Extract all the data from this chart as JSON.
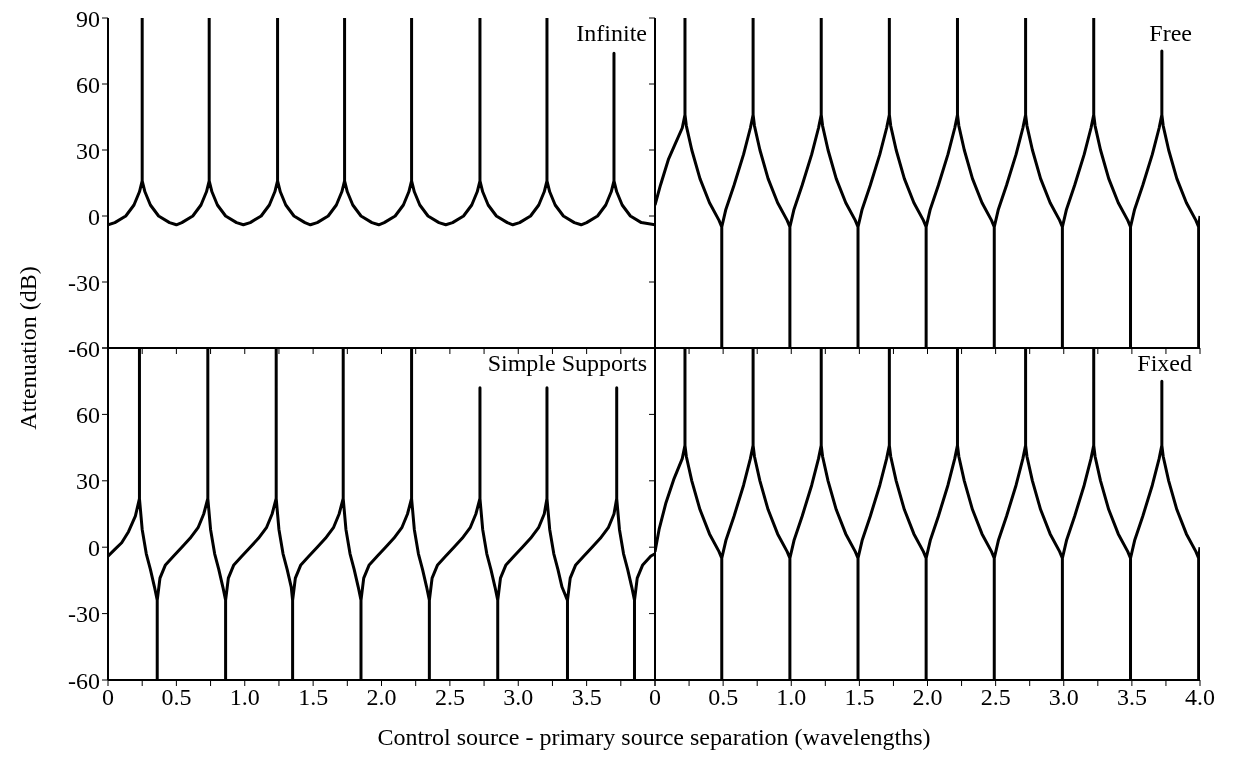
{
  "chart_data": [
    {
      "type": "line",
      "title": "Infinite",
      "ylabel": "Attenuation (dB)",
      "color": "#000000",
      "line_style": "solid",
      "tick_labels": "y",
      "xlim": [
        0,
        4
      ],
      "ylim": [
        -60,
        90
      ],
      "xticks": [
        0,
        0.25,
        0.5,
        0.75,
        1,
        1.25,
        1.5,
        1.75,
        2,
        2.25,
        2.5,
        2.75,
        3,
        3.25,
        3.5,
        3.75,
        4
      ],
      "yticks": [
        90,
        60,
        30,
        0,
        -30,
        -60
      ],
      "x": [
        0,
        0.05,
        0.13,
        0.19,
        0.23,
        0.25,
        0.25,
        0.25,
        0.27,
        0.31,
        0.37,
        0.45,
        0.5,
        0.54,
        0.62,
        0.68,
        0.72,
        0.74,
        0.74,
        0.74,
        0.76,
        0.8,
        0.86,
        0.94,
        0.99,
        1.04,
        1.12,
        1.18,
        1.22,
        1.24,
        1.24,
        1.24,
        1.26,
        1.3,
        1.36,
        1.44,
        1.48,
        1.53,
        1.61,
        1.67,
        1.71,
        1.73,
        1.73,
        1.73,
        1.75,
        1.79,
        1.85,
        1.93,
        1.98,
        2.02,
        2.1,
        2.16,
        2.2,
        2.22,
        2.22,
        2.22,
        2.24,
        2.28,
        2.34,
        2.42,
        2.47,
        2.52,
        2.6,
        2.66,
        2.7,
        2.72,
        2.72,
        2.72,
        2.74,
        2.78,
        2.84,
        2.92,
        2.96,
        3.01,
        3.09,
        3.15,
        3.19,
        3.21,
        3.21,
        3.21,
        3.23,
        3.27,
        3.33,
        3.41,
        3.46,
        3.5,
        3.58,
        3.64,
        3.68,
        3.7,
        3.7,
        3.7,
        3.72,
        3.76,
        3.82,
        3.9,
        4
      ],
      "values": [
        -4,
        -3,
        0,
        5,
        11,
        16,
        90,
        16,
        11,
        5,
        0,
        -3,
        -4,
        -3,
        0,
        5,
        11,
        16,
        90,
        16,
        11,
        5,
        0,
        -3,
        -4,
        -3,
        0,
        5,
        11,
        16,
        90,
        16,
        11,
        5,
        0,
        -3,
        -4,
        -3,
        0,
        5,
        11,
        16,
        90,
        16,
        11,
        5,
        0,
        -3,
        -4,
        -3,
        0,
        5,
        11,
        16,
        90,
        16,
        11,
        5,
        0,
        -3,
        -4,
        -3,
        0,
        5,
        11,
        16,
        90,
        16,
        11,
        5,
        0,
        -3,
        -4,
        -3,
        0,
        5,
        11,
        16,
        90,
        16,
        11,
        5,
        0,
        -3,
        -4,
        -3,
        0,
        5,
        11,
        16,
        74,
        16,
        11,
        5,
        0,
        -3,
        -4
      ]
    },
    {
      "type": "line",
      "title": "Free",
      "color": "#000000",
      "line_style": "solid",
      "tick_labels": false,
      "xlim": [
        0,
        4
      ],
      "ylim": [
        -60,
        90
      ],
      "xticks": [
        0,
        0.25,
        0.5,
        0.75,
        1,
        1.25,
        1.5,
        1.75,
        2,
        2.25,
        2.5,
        2.75,
        3,
        3.25,
        3.5,
        3.75,
        4
      ],
      "yticks": [
        90,
        60,
        30,
        0,
        -30,
        -60
      ],
      "x": [
        0,
        0.04,
        0.1,
        0.15,
        0.2,
        0.22,
        0.22,
        0.22,
        0.23,
        0.27,
        0.33,
        0.4,
        0.47,
        0.49,
        0.49,
        0.49,
        0.52,
        0.58,
        0.65,
        0.7,
        0.72,
        0.72,
        0.72,
        0.73,
        0.77,
        0.83,
        0.9,
        0.97,
        0.99,
        0.99,
        0.99,
        1.02,
        1.08,
        1.15,
        1.2,
        1.22,
        1.22,
        1.22,
        1.23,
        1.27,
        1.33,
        1.4,
        1.47,
        1.49,
        1.49,
        1.49,
        1.52,
        1.58,
        1.65,
        1.7,
        1.72,
        1.72,
        1.72,
        1.73,
        1.77,
        1.83,
        1.9,
        1.97,
        1.99,
        1.99,
        1.99,
        2.02,
        2.08,
        2.15,
        2.2,
        2.22,
        2.22,
        2.22,
        2.23,
        2.27,
        2.33,
        2.4,
        2.47,
        2.49,
        2.49,
        2.49,
        2.52,
        2.58,
        2.65,
        2.7,
        2.72,
        2.72,
        2.72,
        2.73,
        2.77,
        2.83,
        2.9,
        2.97,
        2.99,
        2.99,
        2.99,
        3.02,
        3.08,
        3.15,
        3.2,
        3.22,
        3.22,
        3.22,
        3.23,
        3.27,
        3.33,
        3.4,
        3.47,
        3.49,
        3.49,
        3.49,
        3.52,
        3.58,
        3.65,
        3.7,
        3.72,
        3.72,
        3.72,
        3.73,
        3.77,
        3.83,
        3.9,
        3.97,
        3.99,
        3.99,
        3.99,
        4
      ],
      "values": [
        5,
        14,
        26,
        33,
        40,
        46,
        90,
        46,
        41,
        30,
        17,
        6,
        -2,
        -5,
        -60,
        -5,
        3,
        14,
        28,
        40,
        46,
        90,
        46,
        41,
        30,
        17,
        6,
        -2,
        -5,
        -60,
        -5,
        3,
        14,
        28,
        40,
        46,
        90,
        46,
        41,
        30,
        17,
        6,
        -2,
        -5,
        -60,
        -5,
        3,
        14,
        28,
        40,
        46,
        90,
        46,
        41,
        30,
        17,
        6,
        -2,
        -5,
        -60,
        -5,
        3,
        14,
        28,
        40,
        46,
        90,
        46,
        41,
        30,
        17,
        6,
        -2,
        -5,
        -60,
        -5,
        3,
        14,
        28,
        40,
        46,
        90,
        46,
        41,
        30,
        17,
        6,
        -2,
        -5,
        -60,
        -5,
        3,
        14,
        28,
        40,
        46,
        90,
        46,
        41,
        30,
        17,
        6,
        -2,
        -5,
        -60,
        -5,
        3,
        14,
        28,
        40,
        46,
        75,
        46,
        41,
        30,
        17,
        6,
        -2,
        -5,
        -60,
        -5,
        0
      ]
    },
    {
      "type": "line",
      "title": "Simple Supports",
      "xlabel": "Control source - primary source separation (wavelengths)",
      "color": "#000000",
      "line_style": "solid",
      "xlim": [
        0,
        4
      ],
      "ylim": [
        -60,
        90
      ],
      "xticks": [
        0,
        {
          "value": 0.25,
          "label": null
        },
        0.5,
        {
          "value": 0.75,
          "label": null
        },
        {
          "value": 1,
          "label": "1.0"
        },
        {
          "value": 1.25,
          "label": null
        },
        1.5,
        {
          "value": 1.75,
          "label": null
        },
        {
          "value": 2,
          "label": "2.0"
        },
        {
          "value": 2.25,
          "label": null
        },
        2.5,
        {
          "value": 2.75,
          "label": null
        },
        {
          "value": 3,
          "label": "3.0"
        },
        {
          "value": 3.25,
          "label": null
        },
        3.5,
        {
          "value": 3.75,
          "label": null
        },
        {
          "value": 4,
          "label": null
        }
      ],
      "yticks": [
        {
          "value": 90,
          "label": null
        },
        60,
        30,
        0,
        -30,
        -60
      ],
      "x": [
        0,
        0.05,
        0.1,
        0.15,
        0.2,
        0.23,
        0.23,
        0.23,
        0.25,
        0.28,
        0.31,
        0.34,
        0.36,
        0.36,
        0.36,
        0.38,
        0.42,
        0.48,
        0.54,
        0.6,
        0.66,
        0.7,
        0.73,
        0.73,
        0.73,
        0.75,
        0.78,
        0.81,
        0.84,
        0.86,
        0.86,
        0.86,
        0.88,
        0.92,
        0.98,
        1.04,
        1.1,
        1.16,
        1.2,
        1.23,
        1.23,
        1.23,
        1.25,
        1.28,
        1.31,
        1.34,
        1.35,
        1.35,
        1.35,
        1.37,
        1.41,
        1.47,
        1.53,
        1.59,
        1.65,
        1.69,
        1.72,
        1.72,
        1.72,
        1.74,
        1.77,
        1.8,
        1.83,
        1.85,
        1.85,
        1.85,
        1.87,
        1.91,
        1.97,
        2.03,
        2.09,
        2.15,
        2.19,
        2.22,
        2.22,
        2.22,
        2.24,
        2.27,
        2.3,
        2.33,
        2.35,
        2.35,
        2.35,
        2.37,
        2.41,
        2.47,
        2.53,
        2.59,
        2.65,
        2.69,
        2.72,
        2.72,
        2.72,
        2.74,
        2.77,
        2.8,
        2.83,
        2.85,
        2.85,
        2.85,
        2.87,
        2.91,
        2.97,
        3.03,
        3.09,
        3.15,
        3.19,
        3.21,
        3.21,
        3.21,
        3.23,
        3.26,
        3.29,
        3.32,
        3.36,
        3.36,
        3.36,
        3.38,
        3.42,
        3.48,
        3.54,
        3.6,
        3.66,
        3.7,
        3.72,
        3.72,
        3.72,
        3.74,
        3.77,
        3.8,
        3.83,
        3.85,
        3.85,
        3.85,
        3.87,
        3.91,
        3.97,
        4
      ],
      "values": [
        -4,
        -1,
        2,
        7,
        14,
        22,
        90,
        22,
        8,
        -3,
        -10,
        -18,
        -24,
        -60,
        -24,
        -14,
        -8,
        -4,
        0,
        4,
        9,
        15,
        22,
        90,
        22,
        8,
        -3,
        -10,
        -18,
        -24,
        -60,
        -24,
        -14,
        -8,
        -4,
        0,
        4,
        9,
        15,
        22,
        90,
        22,
        8,
        -3,
        -10,
        -18,
        -24,
        -60,
        -24,
        -14,
        -8,
        -4,
        0,
        4,
        9,
        15,
        22,
        90,
        22,
        8,
        -3,
        -10,
        -18,
        -24,
        -60,
        -24,
        -14,
        -8,
        -4,
        0,
        4,
        9,
        15,
        22,
        90,
        22,
        8,
        -3,
        -10,
        -18,
        -24,
        -60,
        -24,
        -14,
        -8,
        -4,
        0,
        4,
        9,
        15,
        22,
        72,
        22,
        8,
        -3,
        -10,
        -18,
        -24,
        -60,
        -24,
        -14,
        -8,
        -4,
        0,
        4,
        9,
        15,
        22,
        72,
        22,
        8,
        -3,
        -10,
        -18,
        -24,
        -60,
        -24,
        -14,
        -8,
        -4,
        0,
        4,
        9,
        15,
        22,
        72,
        22,
        8,
        -3,
        -10,
        -18,
        -24,
        -60,
        -24,
        -14,
        -8,
        -4,
        -3
      ]
    },
    {
      "type": "line",
      "title": "Fixed",
      "color": "#000000",
      "line_style": "solid",
      "tick_labels": "x",
      "xlim": [
        0,
        4
      ],
      "ylim": [
        -60,
        90
      ],
      "xticks": [
        0,
        {
          "value": 0.25,
          "label": null
        },
        0.5,
        {
          "value": 0.75,
          "label": null
        },
        {
          "value": 1,
          "label": "1.0"
        },
        {
          "value": 1.25,
          "label": null
        },
        1.5,
        {
          "value": 1.75,
          "label": null
        },
        {
          "value": 2,
          "label": "2.0"
        },
        {
          "value": 2.25,
          "label": null
        },
        2.5,
        {
          "value": 2.75,
          "label": null
        },
        {
          "value": 3,
          "label": "3.0"
        },
        {
          "value": 3.25,
          "label": null
        },
        3.5,
        {
          "value": 3.75,
          "label": null
        },
        {
          "value": 4,
          "label": "4.0"
        }
      ],
      "yticks": [
        90,
        60,
        30,
        0,
        -30,
        -60
      ],
      "x": [
        0,
        0.03,
        0.08,
        0.14,
        0.2,
        0.22,
        0.22,
        0.22,
        0.23,
        0.27,
        0.33,
        0.4,
        0.47,
        0.49,
        0.49,
        0.49,
        0.52,
        0.58,
        0.65,
        0.7,
        0.72,
        0.72,
        0.72,
        0.73,
        0.77,
        0.83,
        0.9,
        0.97,
        0.99,
        0.99,
        0.99,
        1.02,
        1.08,
        1.15,
        1.2,
        1.22,
        1.22,
        1.22,
        1.23,
        1.27,
        1.33,
        1.4,
        1.47,
        1.49,
        1.49,
        1.49,
        1.52,
        1.58,
        1.65,
        1.7,
        1.72,
        1.72,
        1.72,
        1.73,
        1.77,
        1.83,
        1.9,
        1.97,
        1.99,
        1.99,
        1.99,
        2.02,
        2.08,
        2.15,
        2.2,
        2.22,
        2.22,
        2.22,
        2.23,
        2.27,
        2.33,
        2.4,
        2.47,
        2.49,
        2.49,
        2.49,
        2.52,
        2.58,
        2.65,
        2.7,
        2.72,
        2.72,
        2.72,
        2.73,
        2.77,
        2.83,
        2.9,
        2.97,
        2.99,
        2.99,
        2.99,
        3.02,
        3.08,
        3.15,
        3.2,
        3.22,
        3.22,
        3.22,
        3.23,
        3.27,
        3.33,
        3.4,
        3.47,
        3.49,
        3.49,
        3.49,
        3.52,
        3.58,
        3.65,
        3.7,
        3.72,
        3.72,
        3.72,
        3.73,
        3.77,
        3.83,
        3.9,
        3.97,
        3.99,
        3.99,
        3.99,
        4
      ],
      "values": [
        -2,
        8,
        20,
        31,
        40,
        46,
        90,
        46,
        41,
        30,
        17,
        6,
        -2,
        -5,
        -60,
        -5,
        3,
        14,
        28,
        40,
        46,
        90,
        46,
        41,
        30,
        17,
        6,
        -2,
        -5,
        -60,
        -5,
        3,
        14,
        28,
        40,
        46,
        90,
        46,
        41,
        30,
        17,
        6,
        -2,
        -5,
        -60,
        -5,
        3,
        14,
        28,
        40,
        46,
        90,
        46,
        41,
        30,
        17,
        6,
        -2,
        -5,
        -60,
        -5,
        3,
        14,
        28,
        40,
        46,
        90,
        46,
        41,
        30,
        17,
        6,
        -2,
        -5,
        -60,
        -5,
        3,
        14,
        28,
        40,
        46,
        90,
        46,
        41,
        30,
        17,
        6,
        -2,
        -5,
        -60,
        -5,
        3,
        14,
        28,
        40,
        46,
        90,
        46,
        41,
        30,
        17,
        6,
        -2,
        -5,
        -60,
        -5,
        3,
        14,
        28,
        40,
        46,
        75,
        46,
        41,
        30,
        17,
        6,
        -2,
        -5,
        -60,
        -5,
        0
      ]
    }
  ]
}
